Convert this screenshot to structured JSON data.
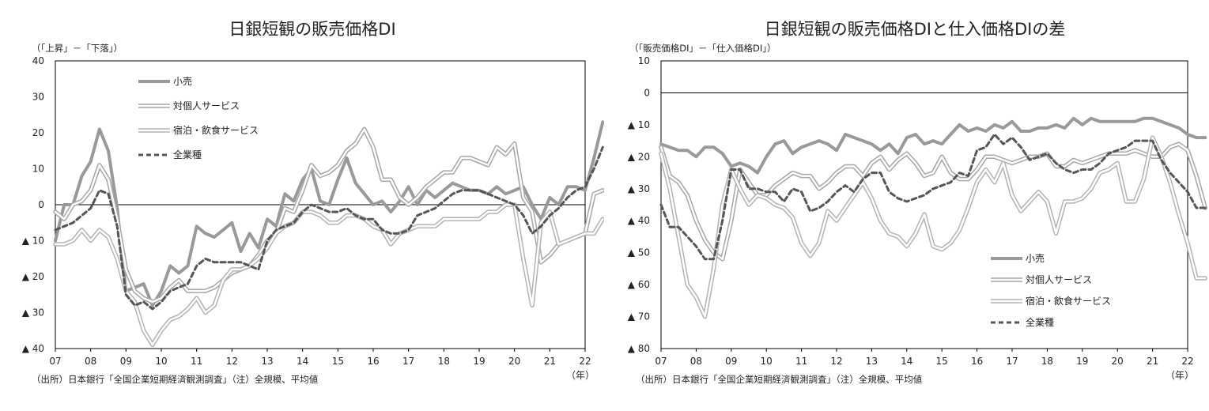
{
  "charts": [
    {
      "type": "line",
      "title": "日銀短観の販売価格DI",
      "unit_label": "（「上昇」－「下落」）",
      "source": "（出所）日本銀行「全国企業短期経済観測調査」（注）全規模、平均値",
      "year_unit": "（年）",
      "x_labels": [
        "07",
        "08",
        "09",
        "10",
        "11",
        "12",
        "13",
        "14",
        "15",
        "16",
        "17",
        "18",
        "19",
        "20",
        "21",
        "22"
      ],
      "y_labels": [
        "40",
        "30",
        "20",
        "10",
        "0",
        "▲ 10",
        "▲ 20",
        "▲ 30",
        "▲ 40"
      ],
      "ylim": [
        -40,
        40
      ],
      "legend_position": "top-left",
      "legend": [
        "小売",
        "対個人サービス",
        "宿泊・飲食サービス",
        "全業種"
      ]
    },
    {
      "type": "line",
      "title": "日銀短観の販売価格DIと仕入価格DIの差",
      "unit_label": "（「販売価格DI」－「仕入価格DI」）",
      "source": "（出所）日本銀行「全国企業短期経済観測調査」（注）全規模、平均値",
      "year_unit": "（年）",
      "x_labels": [
        "07",
        "08",
        "09",
        "10",
        "11",
        "12",
        "13",
        "14",
        "15",
        "16",
        "17",
        "18",
        "19",
        "20",
        "21",
        "22"
      ],
      "y_labels": [
        "10",
        "0",
        "▲ 10",
        "▲ 20",
        "▲ 30",
        "▲ 40",
        "▲ 50",
        "▲ 60",
        "▲ 70",
        "▲ 80"
      ],
      "ylim": [
        -80,
        10
      ],
      "legend_position": "bottom-center",
      "legend": [
        "小売",
        "対個人サービス",
        "宿泊・飲食サービス",
        "全業種"
      ]
    }
  ],
  "chart_data": [
    {
      "type": "line",
      "x_start": 2007.0,
      "x_step": 0.25,
      "ylim": [
        -40,
        40
      ],
      "series": [
        {
          "name": "小売",
          "color": "#999999",
          "values": [
            -10,
            0,
            0,
            8,
            12,
            21,
            15,
            -1,
            -24,
            -23,
            -22,
            -28,
            -24,
            -17,
            -19,
            -17,
            -6,
            -8,
            -9,
            -7,
            -5,
            -13,
            -8,
            -12,
            -4,
            -6,
            3,
            1,
            7,
            10,
            1,
            0,
            7,
            13,
            6,
            3,
            0,
            1,
            -2,
            1,
            5,
            0,
            4,
            2,
            4,
            6,
            5,
            4,
            4,
            3,
            5,
            3,
            4,
            5,
            0,
            -4,
            2,
            0,
            5,
            5,
            4,
            13,
            23
          ]
        },
        {
          "name": "対個人サービス",
          "color": "#aaaaaa",
          "values": [
            -2,
            -4,
            0,
            1,
            4,
            11,
            7,
            -4,
            -18,
            -24,
            -26,
            -27,
            -26,
            -23,
            -21,
            -24,
            -24,
            -24,
            -23,
            -21,
            -19,
            -18,
            -17,
            -14,
            -10,
            -8,
            -1,
            -2,
            4,
            11,
            8,
            9,
            11,
            15,
            17,
            21,
            16,
            7,
            7,
            2,
            0,
            2,
            5,
            7,
            9,
            9,
            13,
            13,
            12,
            11,
            16,
            14,
            17,
            2,
            -2,
            -16,
            -14,
            -11,
            -10,
            -9,
            -8,
            3,
            4
          ]
        },
        {
          "name": "宿泊・飲食サービス",
          "color": "#bbbbbb",
          "values": [
            -11,
            -11,
            -10,
            -7,
            -10,
            -7,
            -9,
            -15,
            -24,
            -27,
            -35,
            -39,
            -35,
            -32,
            -31,
            -29,
            -26,
            -30,
            -28,
            -21,
            -18,
            -18,
            -17,
            -15,
            -12,
            -8,
            -6,
            -5,
            -2,
            -2,
            -3,
            -5,
            -5,
            -3,
            -3,
            -4,
            -6,
            -7,
            -11,
            -8,
            -7,
            -6,
            -6,
            -6,
            -4,
            -4,
            -4,
            -4,
            -4,
            -2,
            -2,
            0,
            0,
            -15,
            -28,
            -5,
            -2,
            -11,
            -10,
            -9,
            -8,
            -8,
            -4
          ]
        },
        {
          "name": "全業種",
          "color": "#555555",
          "values": [
            -7,
            -6,
            -5,
            -3,
            -1,
            4,
            3,
            -6,
            -25,
            -28,
            -27,
            -29,
            -27,
            -24,
            -23,
            -22,
            -17,
            -15,
            -16,
            -16,
            -16,
            -16,
            -17,
            -18,
            -10,
            -7,
            -6,
            -5,
            -2,
            0,
            -1,
            -2,
            -2,
            -1,
            -3,
            -4,
            -4,
            -7,
            -8,
            -8,
            -7,
            -3,
            -2,
            -1,
            1,
            3,
            4,
            4,
            4,
            3,
            2,
            1,
            0,
            -3,
            -8,
            -6,
            -3,
            -1,
            2,
            4,
            5,
            10,
            16
          ]
        }
      ]
    },
    {
      "type": "line",
      "x_start": 2007.0,
      "x_step": 0.25,
      "ylim": [
        -80,
        10
      ],
      "series": [
        {
          "name": "小売",
          "color": "#999999",
          "values": [
            -16,
            -17,
            -18,
            -18,
            -20,
            -17,
            -17,
            -19,
            -23,
            -22,
            -23,
            -25,
            -20,
            -16,
            -15,
            -19,
            -17,
            -16,
            -15,
            -16,
            -18,
            -13,
            -14,
            -15,
            -16,
            -18,
            -16,
            -19,
            -14,
            -13,
            -16,
            -15,
            -16,
            -13,
            -10,
            -12,
            -11,
            -12,
            -10,
            -11,
            -9,
            -12,
            -12,
            -11,
            -11,
            -10,
            -11,
            -8,
            -10,
            -8,
            -9,
            -9,
            -9,
            -9,
            -9,
            -8,
            -8,
            -9,
            -10,
            -11,
            -13,
            -14,
            -14
          ]
        },
        {
          "name": "対個人サービス",
          "color": "#aaaaaa",
          "values": [
            -17,
            -26,
            -28,
            -32,
            -40,
            -46,
            -50,
            -52,
            -40,
            -24,
            -28,
            -32,
            -32,
            -29,
            -27,
            -25,
            -26,
            -26,
            -30,
            -28,
            -25,
            -23,
            -23,
            -26,
            -22,
            -20,
            -24,
            -21,
            -19,
            -22,
            -26,
            -25,
            -20,
            -25,
            -27,
            -27,
            -24,
            -20,
            -20,
            -21,
            -22,
            -21,
            -20,
            -20,
            -19,
            -23,
            -23,
            -21,
            -22,
            -21,
            -20,
            -19,
            -19,
            -19,
            -18,
            -19,
            -20,
            -20,
            -17,
            -16,
            -18,
            -26,
            -36
          ]
        },
        {
          "name": "宿泊・飲食サービス",
          "color": "#bbbbbb",
          "values": [
            -19,
            -30,
            -45,
            -60,
            -64,
            -70,
            -55,
            -35,
            -24,
            -30,
            -35,
            -32,
            -33,
            -35,
            -36,
            -39,
            -47,
            -51,
            -47,
            -37,
            -40,
            -36,
            -32,
            -28,
            -33,
            -40,
            -44,
            -45,
            -48,
            -44,
            -38,
            -48,
            -49,
            -47,
            -43,
            -36,
            -28,
            -24,
            -28,
            -22,
            -32,
            -37,
            -34,
            -31,
            -34,
            -44,
            -34,
            -34,
            -33,
            -30,
            -25,
            -24,
            -22,
            -34,
            -34,
            -27,
            -14,
            -20,
            -28,
            -38,
            -47,
            -58,
            -58
          ]
        },
        {
          "name": "全業種",
          "color": "#555555",
          "values": [
            -35,
            -42,
            -42,
            -45,
            -48,
            -52,
            -52,
            -40,
            -24,
            -24,
            -30,
            -30,
            -31,
            -31,
            -34,
            -30,
            -31,
            -37,
            -36,
            -34,
            -31,
            -29,
            -31,
            -27,
            -25,
            -25,
            -31,
            -33,
            -34,
            -33,
            -32,
            -30,
            -29,
            -28,
            -25,
            -26,
            -18,
            -17,
            -13,
            -16,
            -14,
            -17,
            -21,
            -20,
            -19,
            -22,
            -24,
            -25,
            -24,
            -24,
            -22,
            -19,
            -18,
            -17,
            -15,
            -15,
            -15,
            -21,
            -25,
            -28,
            -31,
            -36,
            -36
          ]
        }
      ]
    }
  ]
}
